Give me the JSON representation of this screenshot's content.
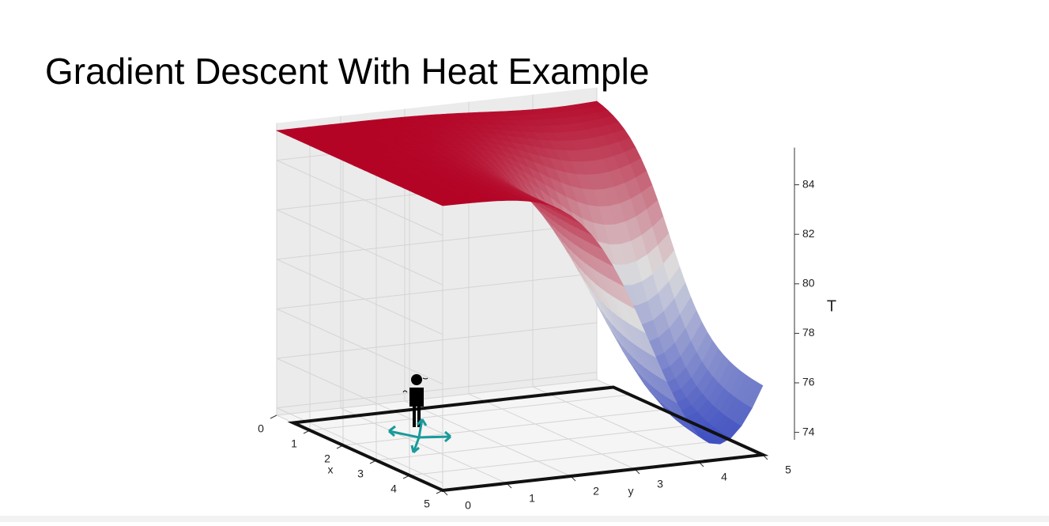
{
  "chart_data": {
    "type": "surface3d",
    "title": "Gradient Descent With Heat Example",
    "xlabel": "x",
    "ylabel": "y",
    "zlabel": "T",
    "xlim": [
      0,
      5
    ],
    "xticks": [
      0,
      1,
      2,
      3,
      4,
      5
    ],
    "ylim": [
      0,
      5
    ],
    "yticks": [
      0,
      1,
      2,
      3,
      4,
      5
    ],
    "zlim": [
      73.7,
      85.5
    ],
    "zticks": [
      74,
      76,
      78,
      80,
      82,
      84
    ],
    "grid": true
  }
}
